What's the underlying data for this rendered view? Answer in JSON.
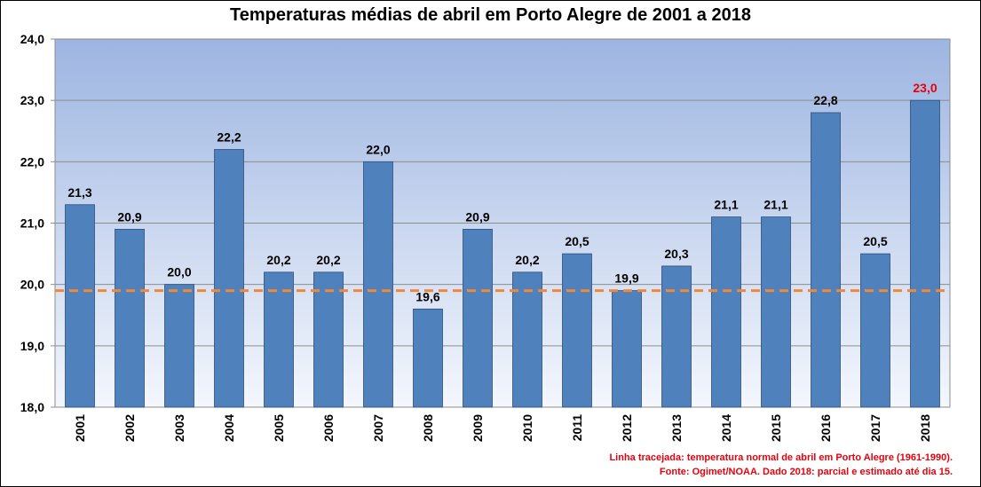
{
  "chart_data": {
    "type": "bar",
    "title": "Temperaturas médias de abril em Porto Alegre de 2001 a 2018",
    "categories": [
      "2001",
      "2002",
      "2003",
      "2004",
      "2005",
      "2006",
      "2007",
      "2008",
      "2009",
      "2010",
      "2011",
      "2012",
      "2013",
      "2014",
      "2015",
      "2016",
      "2017",
      "2018"
    ],
    "values": [
      21.3,
      20.9,
      20.0,
      22.2,
      20.2,
      20.2,
      22.0,
      19.6,
      20.9,
      20.2,
      20.5,
      19.9,
      20.3,
      21.1,
      21.1,
      22.8,
      20.5,
      23.0
    ],
    "data_labels": [
      "21,3",
      "20,9",
      "20,0",
      "22,2",
      "20,2",
      "20,2",
      "22,0",
      "19,6",
      "20,9",
      "20,2",
      "20,5",
      "19,9",
      "20,3",
      "21,1",
      "21,1",
      "22,8",
      "20,5",
      "23,0"
    ],
    "ylim": [
      18.0,
      24.0
    ],
    "yticks": [
      "18,0",
      "19,0",
      "20,0",
      "21,0",
      "22,0",
      "23,0",
      "24,0"
    ],
    "reference_line": {
      "value": 19.9,
      "style": "dashed",
      "color": "#f0883a"
    },
    "highlight_label_index": 17,
    "highlight_label_color": "#e8000b",
    "bar_color": "#4f81bd",
    "grid": true,
    "xlabel": "",
    "ylabel": ""
  },
  "notes": {
    "line1": "Linha tracejada: temperatura normal de abril em Porto Alegre (1961-1990).",
    "line2": "Fonte: Ogimet/NOAA. Dado 2018: parcial e estimado até dia 15."
  }
}
